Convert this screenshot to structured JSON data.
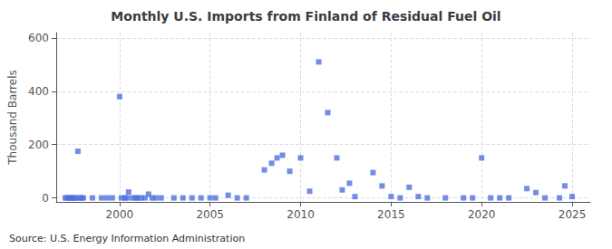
{
  "chart_data": {
    "type": "scatter",
    "title": "Monthly U.S. Imports from Finland of Residual Fuel Oil",
    "ylabel": "Thousand Barrels",
    "annotation": "Source: U.S. Energy Information Administration",
    "marker": "square",
    "grid": true,
    "xlim": [
      1996.5,
      2026
    ],
    "xticks": [
      2000,
      2005,
      2010,
      2015,
      2020,
      2025
    ],
    "ylim": [
      -15,
      620
    ],
    "yticks": [
      0,
      200,
      400,
      600
    ],
    "x": [
      1997.0,
      1997.1,
      1997.2,
      1997.3,
      1997.4,
      1997.5,
      1997.6,
      1997.7,
      1997.8,
      1997.9,
      1998.0,
      1998.5,
      1999.0,
      1999.3,
      1999.6,
      2000.0,
      2000.1,
      2000.3,
      2000.4,
      2000.5,
      2000.7,
      2000.9,
      2001.0,
      2001.2,
      2001.4,
      2001.6,
      2001.8,
      2002.0,
      2002.3,
      2003.0,
      2003.5,
      2004.0,
      2004.5,
      2005.0,
      2005.3,
      2006.0,
      2006.5,
      2007.0,
      2008.0,
      2008.4,
      2008.7,
      2009.0,
      2009.4,
      2010.0,
      2010.5,
      2011.0,
      2011.5,
      2012.0,
      2012.3,
      2012.7,
      2013.0,
      2014.0,
      2014.5,
      2015.0,
      2015.5,
      2016.0,
      2016.5,
      2017.0,
      2018.0,
      2019.0,
      2019.5,
      2020.0,
      2020.5,
      2021.0,
      2021.5,
      2022.5,
      2023.0,
      2023.5,
      2024.3,
      2024.6,
      2025.0
    ],
    "values": [
      0,
      0,
      0,
      0,
      0,
      0,
      0,
      175,
      0,
      0,
      0,
      0,
      0,
      0,
      0,
      380,
      0,
      0,
      0,
      22,
      0,
      0,
      0,
      0,
      0,
      14,
      0,
      0,
      0,
      0,
      0,
      0,
      0,
      0,
      0,
      10,
      0,
      0,
      105,
      130,
      150,
      160,
      100,
      150,
      25,
      510,
      320,
      150,
      30,
      55,
      5,
      95,
      45,
      5,
      0,
      40,
      5,
      0,
      0,
      0,
      0,
      150,
      0,
      0,
      0,
      35,
      20,
      0,
      0,
      45,
      5
    ]
  }
}
